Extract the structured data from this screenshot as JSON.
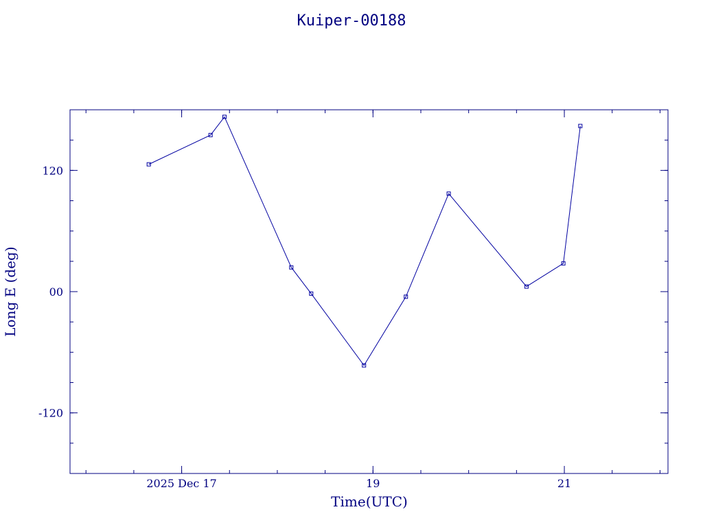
{
  "chart_data": {
    "type": "line",
    "title": "Kuiper-00188",
    "xlabel": "Time(UTC)",
    "ylabel": "Long E (deg)",
    "x_unit": "days",
    "xlim": [
      "2025-12-15T20:00",
      "2025-12-22T02:00"
    ],
    "ylim": [
      -180,
      180
    ],
    "x_ticks": [
      {
        "value": "2025-12-17T00:00",
        "label": "2025 Dec 17"
      },
      {
        "value": "2025-12-19T00:00",
        "label": "19"
      },
      {
        "value": "2025-12-21T00:00",
        "label": "21"
      }
    ],
    "y_ticks": [
      {
        "value": 120,
        "label": "120"
      },
      {
        "value": 0,
        "label": "00"
      },
      {
        "value": -120,
        "label": "-120"
      }
    ],
    "series": [
      {
        "marker": "square",
        "color": "#0000a0",
        "points": [
          {
            "x": "2025-12-16T15:45",
            "y": 126
          },
          {
            "x": "2025-12-17T07:15",
            "y": 155
          },
          {
            "x": "2025-12-17T10:45",
            "y": 173
          },
          {
            "x": "2025-12-18T03:30",
            "y": 24
          },
          {
            "x": "2025-12-18T08:30",
            "y": -2
          },
          {
            "x": "2025-12-18T21:45",
            "y": -73
          },
          {
            "x": "2025-12-19T08:15",
            "y": -5
          },
          {
            "x": "2025-12-19T19:00",
            "y": 97
          },
          {
            "x": "2025-12-20T14:30",
            "y": 5
          },
          {
            "x": "2025-12-20T23:45",
            "y": 28
          },
          {
            "x": "2025-12-21T04:00",
            "y": 164
          }
        ]
      }
    ],
    "grid": false,
    "legend": "none"
  },
  "colors": {
    "axes": "#000080",
    "series": "#0000a0"
  }
}
